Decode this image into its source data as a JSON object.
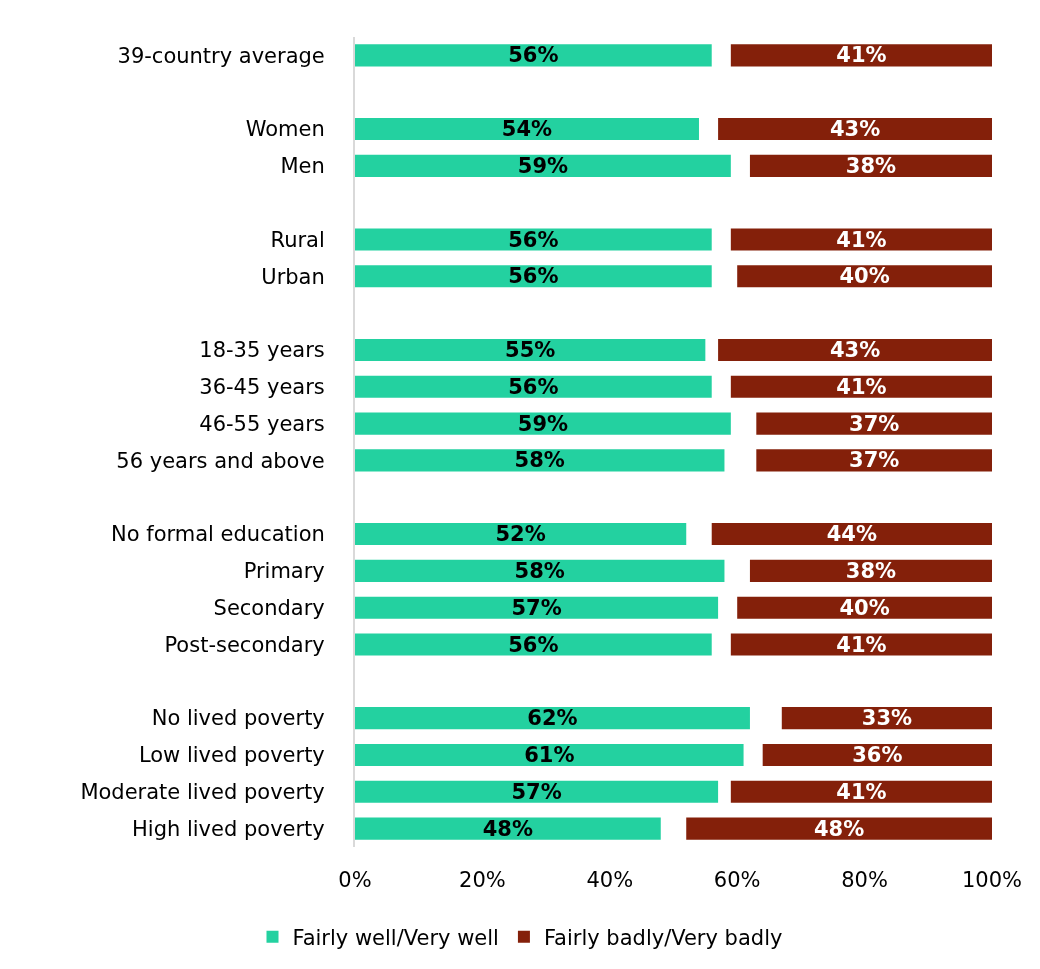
{
  "chart_data": {
    "type": "bar",
    "orientation": "horizontal",
    "categories": [
      "39-country average",
      null,
      "Women",
      "Men",
      null,
      "Rural",
      "Urban",
      null,
      "18-35 years",
      "36-45 years",
      "46-55 years",
      "56 years and above",
      null,
      "No formal education",
      "Primary",
      "Secondary",
      "Post-secondary",
      null,
      "No lived poverty",
      "Low lived poverty",
      "Moderate lived poverty",
      "High lived poverty"
    ],
    "series": [
      {
        "name": "Fairly well/Very well",
        "color": "#23d1a0",
        "values": [
          56,
          null,
          54,
          59,
          null,
          56,
          56,
          null,
          55,
          56,
          59,
          58,
          null,
          52,
          58,
          57,
          56,
          null,
          62,
          61,
          57,
          48
        ],
        "base": [
          0,
          null,
          0,
          0,
          null,
          0,
          0,
          null,
          0,
          0,
          0,
          0,
          null,
          0,
          0,
          0,
          0,
          null,
          0,
          0,
          0,
          0
        ],
        "value_labels": [
          "56%",
          null,
          "54%",
          "59%",
          null,
          "56%",
          "56%",
          null,
          "55%",
          "56%",
          "59%",
          "58%",
          null,
          "52%",
          "58%",
          "57%",
          "56%",
          null,
          "62%",
          "61%",
          "57%",
          "48%"
        ]
      },
      {
        "name": "Fairly badly/Very badly",
        "color": "#84200a",
        "values": [
          41,
          null,
          43,
          38,
          null,
          41,
          40,
          null,
          43,
          41,
          37,
          37,
          null,
          44,
          38,
          40,
          41,
          null,
          33,
          36,
          41,
          48
        ],
        "base": [
          59,
          null,
          57,
          62,
          null,
          59,
          60,
          null,
          57,
          59,
          63,
          63,
          null,
          56,
          62,
          60,
          59,
          null,
          67,
          64,
          59,
          52
        ],
        "value_labels": [
          "41%",
          null,
          "43%",
          "38%",
          null,
          "41%",
          "40%",
          null,
          "43%",
          "41%",
          "37%",
          "37%",
          null,
          "44%",
          "38%",
          "40%",
          "41%",
          null,
          "33%",
          "36%",
          "41%",
          "48%"
        ]
      }
    ],
    "xlim": [
      0,
      100
    ],
    "xticks": [
      {
        "value": 0,
        "label": "0%"
      },
      {
        "value": 20,
        "label": "20%"
      },
      {
        "value": 40,
        "label": "40%"
      },
      {
        "value": 60,
        "label": "60%"
      },
      {
        "value": 80,
        "label": "80%"
      },
      {
        "value": 100,
        "label": "100%"
      }
    ],
    "grid": false,
    "legend": "bottom"
  }
}
